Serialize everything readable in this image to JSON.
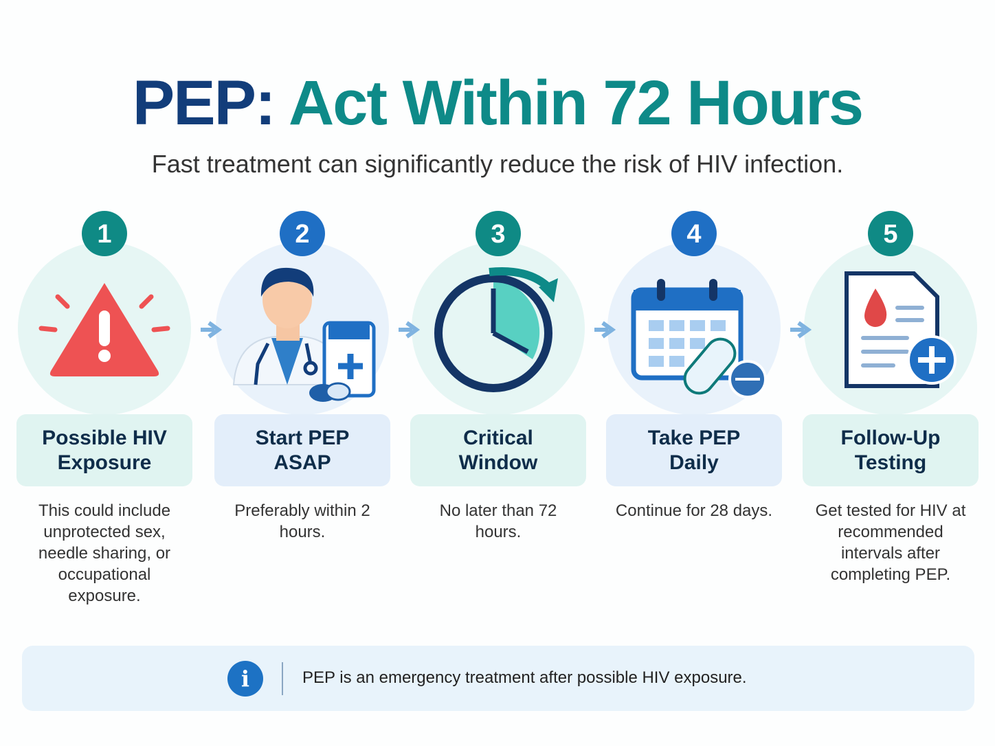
{
  "header": {
    "title_lead": "PEP:",
    "title_rest": "Act Within 72 Hours",
    "subtitle": "Fast treatment can significantly reduce the risk of HIV infection."
  },
  "steps": [
    {
      "number": "1",
      "title": "Possible HIV Exposure",
      "description": "This could include unprotected sex, needle sharing, or occupational exposure."
    },
    {
      "number": "2",
      "title": "Start PEP ASAP",
      "description": "Preferably within 2 hours."
    },
    {
      "number": "3",
      "title": "Critical Window",
      "description": "No later than 72 hours."
    },
    {
      "number": "4",
      "title": "Take PEP Daily",
      "description": "Continue for 28 days."
    },
    {
      "number": "5",
      "title": "Follow-Up Testing",
      "description": "Get tested for HIV at recommended intervals after completing PEP."
    }
  ],
  "footer": {
    "icon": "i",
    "note": "PEP is an emergency treatment after possible HIV exposure."
  }
}
